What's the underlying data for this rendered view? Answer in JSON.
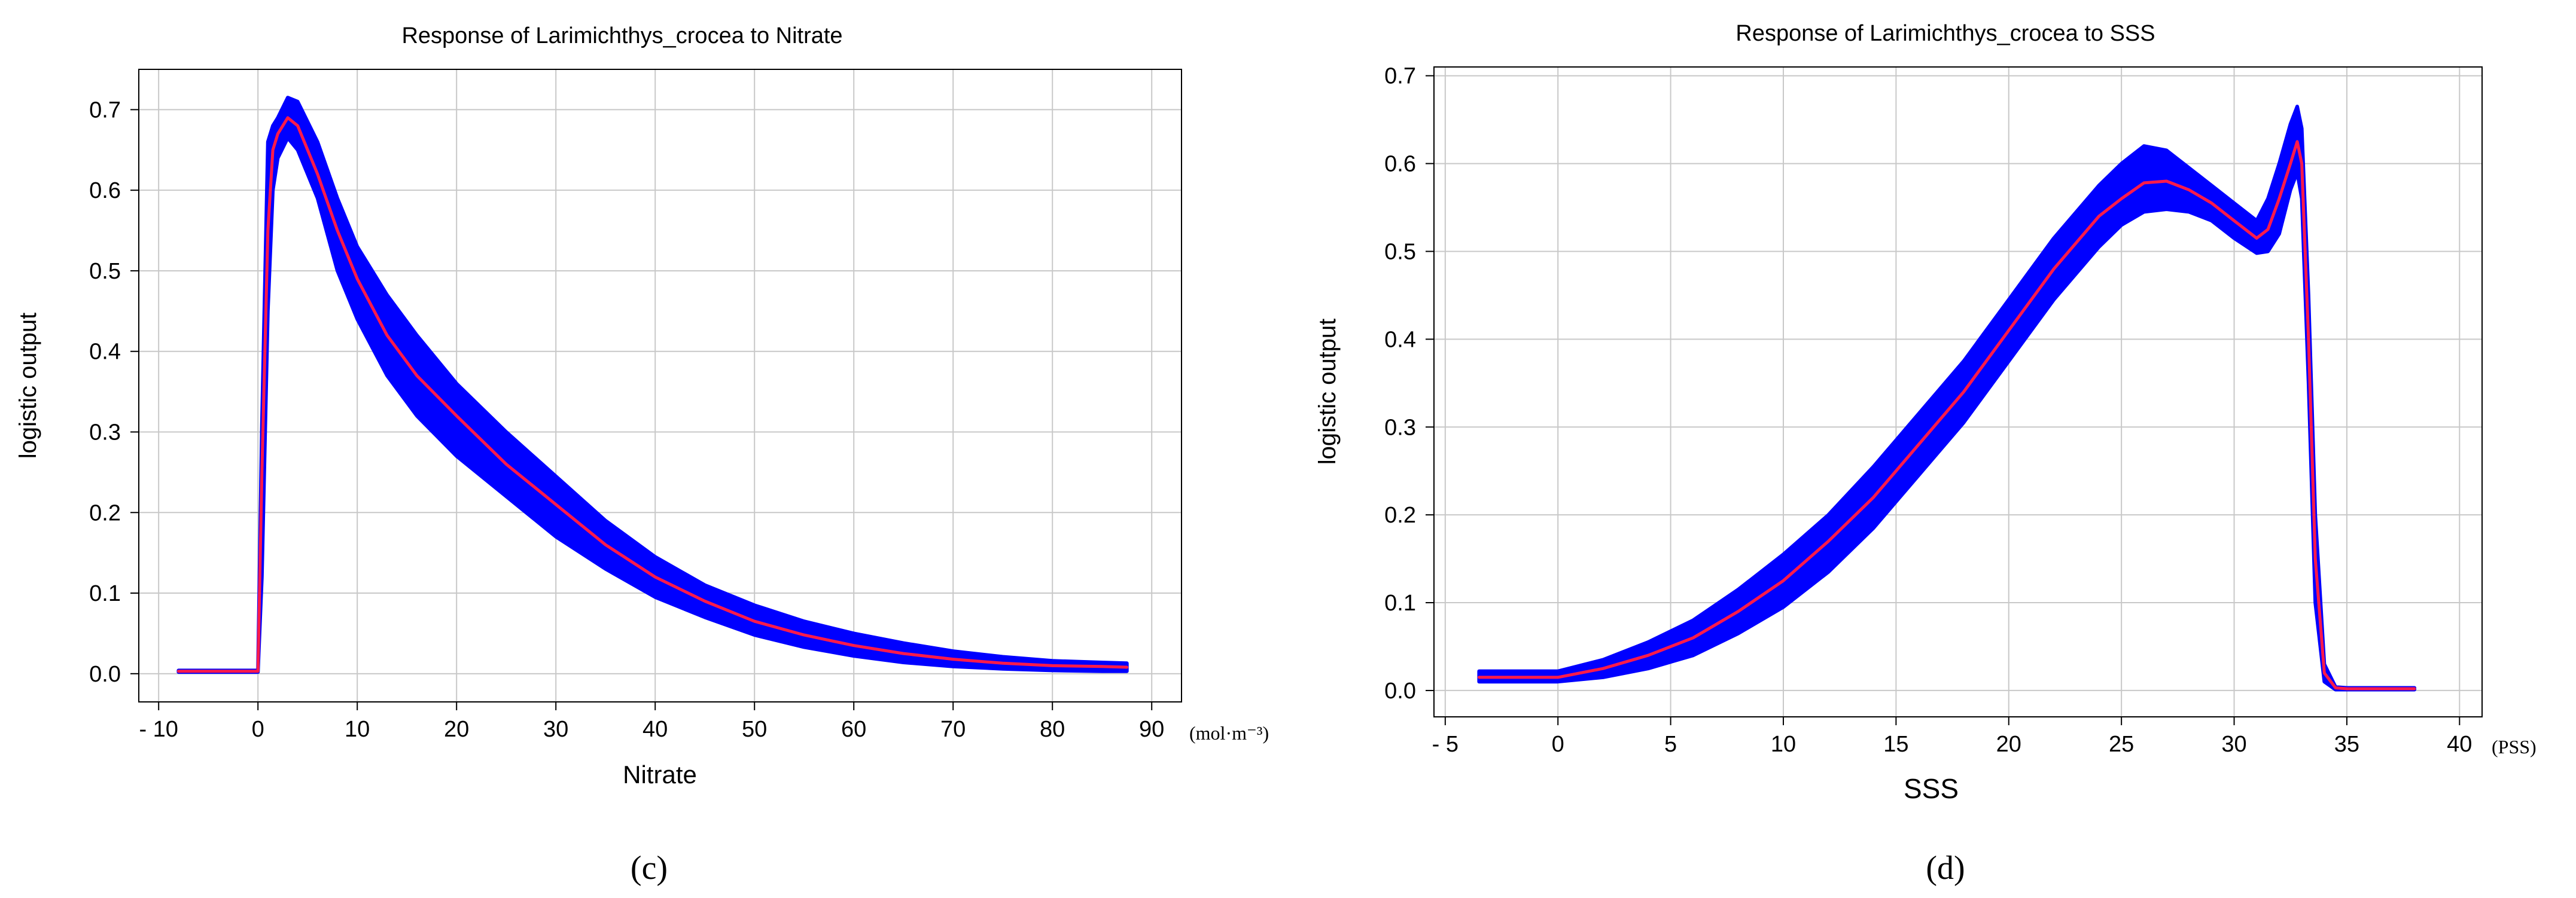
{
  "charts": [
    {
      "title": "Response of Larimichthys_crocea to Nitrate",
      "xlabel": "Nitrate",
      "ylabel": "logistic output",
      "unit": "(mol·m⁻³)",
      "panel_label": "(c)",
      "xticks": [
        {
          "v": -10,
          "label": "- 10"
        },
        {
          "v": 0,
          "label": "0"
        },
        {
          "v": 10,
          "label": "10"
        },
        {
          "v": 20,
          "label": "20"
        },
        {
          "v": 30,
          "label": "30"
        },
        {
          "v": 40,
          "label": "40"
        },
        {
          "v": 50,
          "label": "50"
        },
        {
          "v": 60,
          "label": "60"
        },
        {
          "v": 70,
          "label": "70"
        },
        {
          "v": 80,
          "label": "80"
        },
        {
          "v": 90,
          "label": "90"
        }
      ],
      "yticks": [
        {
          "v": 0,
          "label": "0.0"
        },
        {
          "v": 0.1,
          "label": "0.1"
        },
        {
          "v": 0.2,
          "label": "0.2"
        },
        {
          "v": 0.3,
          "label": "0.3"
        },
        {
          "v": 0.4,
          "label": "0.4"
        },
        {
          "v": 0.5,
          "label": "0.5"
        },
        {
          "v": 0.6,
          "label": "0.6"
        },
        {
          "v": 0.7,
          "label": "0.7"
        }
      ]
    },
    {
      "title": "Response of Larimichthys_crocea to SSS",
      "xlabel": "SSS",
      "ylabel": "logistic output",
      "unit": "(PSS)",
      "panel_label": "(d)",
      "xticks": [
        {
          "v": -5,
          "label": "- 5"
        },
        {
          "v": 0,
          "label": "0"
        },
        {
          "v": 5,
          "label": "5"
        },
        {
          "v": 10,
          "label": "10"
        },
        {
          "v": 15,
          "label": "15"
        },
        {
          "v": 20,
          "label": "20"
        },
        {
          "v": 25,
          "label": "25"
        },
        {
          "v": 30,
          "label": "30"
        },
        {
          "v": 35,
          "label": "35"
        },
        {
          "v": 40,
          "label": "40"
        }
      ],
      "yticks": [
        {
          "v": 0,
          "label": "0.0"
        },
        {
          "v": 0.1,
          "label": "0.1"
        },
        {
          "v": 0.2,
          "label": "0.2"
        },
        {
          "v": 0.3,
          "label": "0.3"
        },
        {
          "v": 0.4,
          "label": "0.4"
        },
        {
          "v": 0.5,
          "label": "0.5"
        },
        {
          "v": 0.6,
          "label": "0.6"
        },
        {
          "v": 0.7,
          "label": "0.7"
        }
      ]
    }
  ],
  "colors": {
    "band": "#0000ff",
    "mean": "#ff1a4a",
    "grid": "#c8c8c8",
    "axis": "#000000"
  },
  "chart_data": [
    {
      "type": "line",
      "title": "Response of Larimichthys_crocea to Nitrate",
      "xlabel": "Nitrate",
      "ylabel": "logistic output",
      "xlim": [
        -12,
        93
      ],
      "ylim": [
        -0.035,
        0.75
      ],
      "grid": true,
      "series": [
        {
          "style": "mean",
          "x": [
            -8,
            0,
            0.4,
            1,
            1.5,
            2,
            3,
            4,
            6,
            8,
            10,
            13,
            16,
            20,
            25,
            30,
            35,
            40,
            45,
            50,
            55,
            60,
            65,
            70,
            75,
            80,
            85,
            87.5
          ],
          "y": [
            0.003,
            0.003,
            0.25,
            0.55,
            0.65,
            0.67,
            0.69,
            0.68,
            0.62,
            0.55,
            0.49,
            0.42,
            0.37,
            0.32,
            0.26,
            0.21,
            0.16,
            0.12,
            0.09,
            0.065,
            0.048,
            0.035,
            0.025,
            0.018,
            0.013,
            0.01,
            0.009,
            0.008
          ]
        },
        {
          "style": "band_upper",
          "x": [
            -8,
            0,
            0.4,
            1,
            1.5,
            2,
            3,
            4,
            6,
            8,
            10,
            13,
            16,
            20,
            25,
            30,
            35,
            40,
            45,
            50,
            55,
            60,
            65,
            70,
            75,
            80,
            85,
            87.5
          ],
          "y": [
            0.004,
            0.004,
            0.31,
            0.66,
            0.68,
            0.69,
            0.715,
            0.71,
            0.66,
            0.59,
            0.53,
            0.47,
            0.42,
            0.36,
            0.3,
            0.245,
            0.19,
            0.145,
            0.11,
            0.085,
            0.065,
            0.05,
            0.038,
            0.028,
            0.021,
            0.016,
            0.014,
            0.013
          ]
        },
        {
          "style": "band_lower",
          "x": [
            -8,
            0,
            0.4,
            1,
            1.5,
            2,
            3,
            4,
            6,
            8,
            10,
            13,
            16,
            20,
            25,
            30,
            35,
            40,
            45,
            50,
            55,
            60,
            65,
            70,
            75,
            80,
            85,
            87.5
          ],
          "y": [
            0.002,
            0.002,
            0.12,
            0.45,
            0.6,
            0.64,
            0.665,
            0.65,
            0.59,
            0.5,
            0.44,
            0.37,
            0.32,
            0.27,
            0.22,
            0.17,
            0.13,
            0.095,
            0.07,
            0.048,
            0.033,
            0.022,
            0.014,
            0.009,
            0.006,
            0.004,
            0.003,
            0.003
          ]
        }
      ]
    },
    {
      "type": "line",
      "title": "Response of Larimichthys_crocea to SSS",
      "xlabel": "SSS",
      "ylabel": "logistic output",
      "xlim": [
        -5.5,
        41
      ],
      "ylim": [
        -0.03,
        0.71
      ],
      "grid": true,
      "series": [
        {
          "style": "mean",
          "x": [
            -3.5,
            0,
            2,
            4,
            6,
            8,
            10,
            12,
            14,
            16,
            18,
            20,
            22,
            24,
            25,
            26,
            27,
            28,
            29,
            30,
            31,
            31.5,
            32,
            32.5,
            32.8,
            33,
            33.3,
            33.6,
            34,
            34.5,
            35,
            38
          ],
          "y": [
            0.015,
            0.015,
            0.025,
            0.04,
            0.06,
            0.09,
            0.125,
            0.17,
            0.22,
            0.28,
            0.34,
            0.41,
            0.48,
            0.54,
            0.56,
            0.578,
            0.58,
            0.57,
            0.555,
            0.535,
            0.515,
            0.525,
            0.56,
            0.6,
            0.625,
            0.6,
            0.4,
            0.15,
            0.02,
            0.003,
            0.002,
            0.002
          ]
        },
        {
          "style": "band_upper",
          "x": [
            -3.5,
            0,
            2,
            4,
            6,
            8,
            10,
            12,
            14,
            16,
            18,
            20,
            22,
            24,
            25,
            26,
            27,
            28,
            29,
            30,
            31,
            31.5,
            32,
            32.5,
            32.8,
            33,
            33.3,
            33.6,
            34,
            34.5,
            35,
            38
          ],
          "y": [
            0.022,
            0.022,
            0.035,
            0.055,
            0.08,
            0.115,
            0.155,
            0.2,
            0.255,
            0.315,
            0.375,
            0.445,
            0.515,
            0.575,
            0.6,
            0.62,
            0.615,
            0.595,
            0.575,
            0.555,
            0.535,
            0.56,
            0.6,
            0.645,
            0.665,
            0.64,
            0.45,
            0.2,
            0.03,
            0.004,
            0.003,
            0.003
          ]
        },
        {
          "style": "band_lower",
          "x": [
            -3.5,
            0,
            2,
            4,
            6,
            8,
            10,
            12,
            14,
            16,
            18,
            20,
            22,
            24,
            25,
            26,
            27,
            28,
            29,
            30,
            31,
            31.5,
            32,
            32.5,
            32.8,
            33,
            33.3,
            33.6,
            34,
            34.5,
            35,
            38
          ],
          "y": [
            0.01,
            0.01,
            0.015,
            0.025,
            0.04,
            0.065,
            0.095,
            0.135,
            0.185,
            0.245,
            0.305,
            0.375,
            0.445,
            0.505,
            0.53,
            0.545,
            0.548,
            0.545,
            0.535,
            0.515,
            0.498,
            0.5,
            0.52,
            0.57,
            0.59,
            0.56,
            0.35,
            0.1,
            0.01,
            0.001,
            0.001,
            0.001
          ]
        }
      ]
    }
  ]
}
